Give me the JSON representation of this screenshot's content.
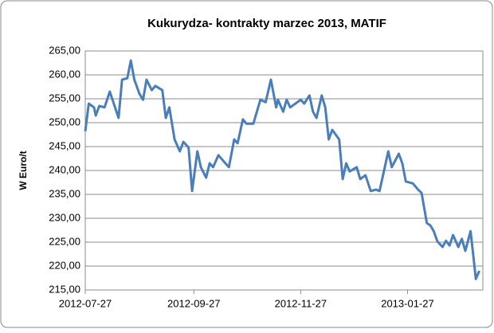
{
  "chart_data": {
    "type": "line",
    "title": "Kukurydza- kontrakty marzec 2013, MATIF",
    "y_label": "W Euro/t",
    "grid": true,
    "xlim": [
      "2012-07-27",
      "2013-03-11"
    ],
    "xticks": [
      "2012-07-27",
      "2012-09-27",
      "2012-11-27",
      "2013-01-27"
    ],
    "ylim": [
      215,
      265
    ],
    "yticks": [
      {
        "value": 215,
        "label": "215,00"
      },
      {
        "value": 220,
        "label": "220,00"
      },
      {
        "value": 225,
        "label": "225,00"
      },
      {
        "value": 230,
        "label": "230,00"
      },
      {
        "value": 235,
        "label": "235,00"
      },
      {
        "value": 240,
        "label": "240,00"
      },
      {
        "value": 245,
        "label": "245,00"
      },
      {
        "value": 250,
        "label": "250,00"
      },
      {
        "value": 255,
        "label": "255,00"
      },
      {
        "value": 260,
        "label": "260,00"
      },
      {
        "value": 265,
        "label": "265,00"
      }
    ],
    "x": [
      "2012-07-27",
      "2012-07-29",
      "2012-08-01",
      "2012-08-02",
      "2012-08-04",
      "2012-08-07",
      "2012-08-10",
      "2012-08-12",
      "2012-08-15",
      "2012-08-17",
      "2012-08-20",
      "2012-08-22",
      "2012-08-24",
      "2012-08-27",
      "2012-08-29",
      "2012-08-31",
      "2012-09-03",
      "2012-09-05",
      "2012-09-09",
      "2012-09-11",
      "2012-09-13",
      "2012-09-16",
      "2012-09-19",
      "2012-09-21",
      "2012-09-24",
      "2012-09-26",
      "2012-09-29",
      "2012-10-01",
      "2012-10-04",
      "2012-10-06",
      "2012-10-08",
      "2012-10-11",
      "2012-10-15",
      "2012-10-17",
      "2012-10-20",
      "2012-10-22",
      "2012-10-25",
      "2012-10-27",
      "2012-10-31",
      "2012-11-02",
      "2012-11-04",
      "2012-11-07",
      "2012-11-10",
      "2012-11-13",
      "2012-11-14",
      "2012-11-17",
      "2012-11-19",
      "2012-11-21",
      "2012-11-24",
      "2012-11-27",
      "2012-11-29",
      "2012-12-02",
      "2012-12-04",
      "2012-12-06",
      "2012-12-09",
      "2012-12-11",
      "2012-12-13",
      "2012-12-15",
      "2012-12-19",
      "2012-12-21",
      "2012-12-23",
      "2012-12-25",
      "2012-12-29",
      "2012-12-31",
      "2013-01-03",
      "2013-01-06",
      "2013-01-09",
      "2013-01-11",
      "2013-01-13",
      "2013-01-16",
      "2013-01-18",
      "2013-01-22",
      "2013-01-24",
      "2013-01-26",
      "2013-01-30",
      "2013-02-02",
      "2013-02-04",
      "2013-02-07",
      "2013-02-09",
      "2013-02-11",
      "2013-02-13",
      "2013-02-16",
      "2013-02-18",
      "2013-02-20",
      "2013-02-22",
      "2013-02-25",
      "2013-02-27",
      "2013-03-01",
      "2013-03-04",
      "2013-03-06",
      "2013-03-07",
      "2013-03-09"
    ],
    "series": [
      {
        "name": "MATIF",
        "color": "#4a7ebb",
        "values": [
          248.2,
          254,
          253.2,
          251.5,
          253.5,
          253.2,
          256.5,
          254.3,
          251,
          259,
          259.3,
          263,
          259,
          256,
          254.8,
          259,
          256.8,
          257.7,
          256.8,
          251,
          253.2,
          246.5,
          244,
          246,
          244.8,
          235.7,
          244,
          240.7,
          238.5,
          241.5,
          240.7,
          243.2,
          241.5,
          240.7,
          246.5,
          245.7,
          250.7,
          249.8,
          249.8,
          252.3,
          254.8,
          254.3,
          259,
          253.2,
          254.8,
          252.3,
          254.8,
          253.2,
          254,
          254.8,
          254,
          255.7,
          252.3,
          251,
          255.7,
          253.2,
          246.5,
          248.5,
          246.5,
          238.2,
          241.5,
          239.8,
          240.7,
          238.2,
          239,
          235.7,
          236,
          235.7,
          239,
          244,
          240.7,
          243.5,
          241.5,
          237.7,
          237.3,
          236,
          235.3,
          229,
          228.5,
          227.3,
          225.2,
          224,
          225.3,
          224.3,
          226.5,
          224,
          225.7,
          223.2,
          227.3,
          220.7,
          217.3,
          219
        ]
      }
    ]
  }
}
